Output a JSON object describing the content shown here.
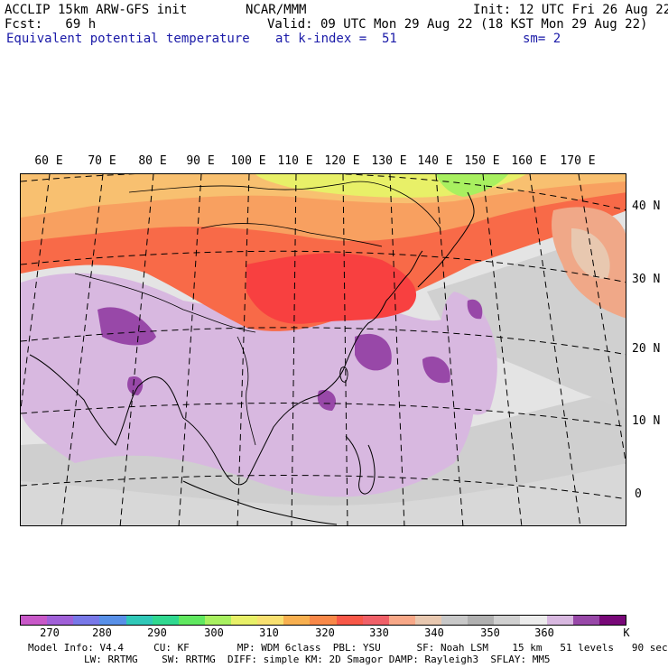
{
  "header": {
    "model_line": "ACCLIP 15km ARW-GFS init",
    "fcst_line": "Fcst:   69 h",
    "field_name": "Equivalent potential temperature",
    "center": "NCAR/MMM",
    "init_line": "Init: 12 UTC Fri 26 Aug 22",
    "valid_line": "Valid: 09 UTC Mon 29 Aug 22 (18 KST Mon 29 Aug 22)",
    "level_line": "at k-index =  51",
    "smooth_line": "sm= 2"
  },
  "map": {
    "lon_labels": [
      "60 E",
      "70 E",
      "80 E",
      "90 E",
      "100 E",
      "110 E",
      "120 E",
      "130 E",
      "140 E",
      "150 E",
      "160 E",
      "170 E"
    ],
    "lat_labels": [
      "40 N",
      "30 N",
      "20 N",
      "10 N",
      "0"
    ]
  },
  "colorbar": {
    "unit": "K",
    "tick_labels": [
      "270",
      "280",
      "290",
      "300",
      "310",
      "320",
      "330",
      "340",
      "350",
      "360"
    ],
    "colors": [
      "#c858c8",
      "#a060d8",
      "#7878e8",
      "#5890e8",
      "#30c8b8",
      "#30d890",
      "#60e860",
      "#a8f060",
      "#e8f068",
      "#f8e070",
      "#f8b050",
      "#f88848",
      "#f85848",
      "#f06068",
      "#f8a888",
      "#e8c8b0",
      "#c8c8c8",
      "#b0b0b0",
      "#d0d0d0",
      "#ececec",
      "#d8b8e0",
      "#9848a8",
      "#780878"
    ]
  },
  "footer": {
    "line1": "Model Info: V4.4     CU: KF        MP: WDM 6class  PBL: YSU      SF: Noah LSM    15 km   51 levels   90 sec",
    "line2": "LW: RRTMG    SW: RRTMG  DIFF: simple KM: 2D Smagor DAMP: Rayleigh3  SFLAY: MM5"
  }
}
